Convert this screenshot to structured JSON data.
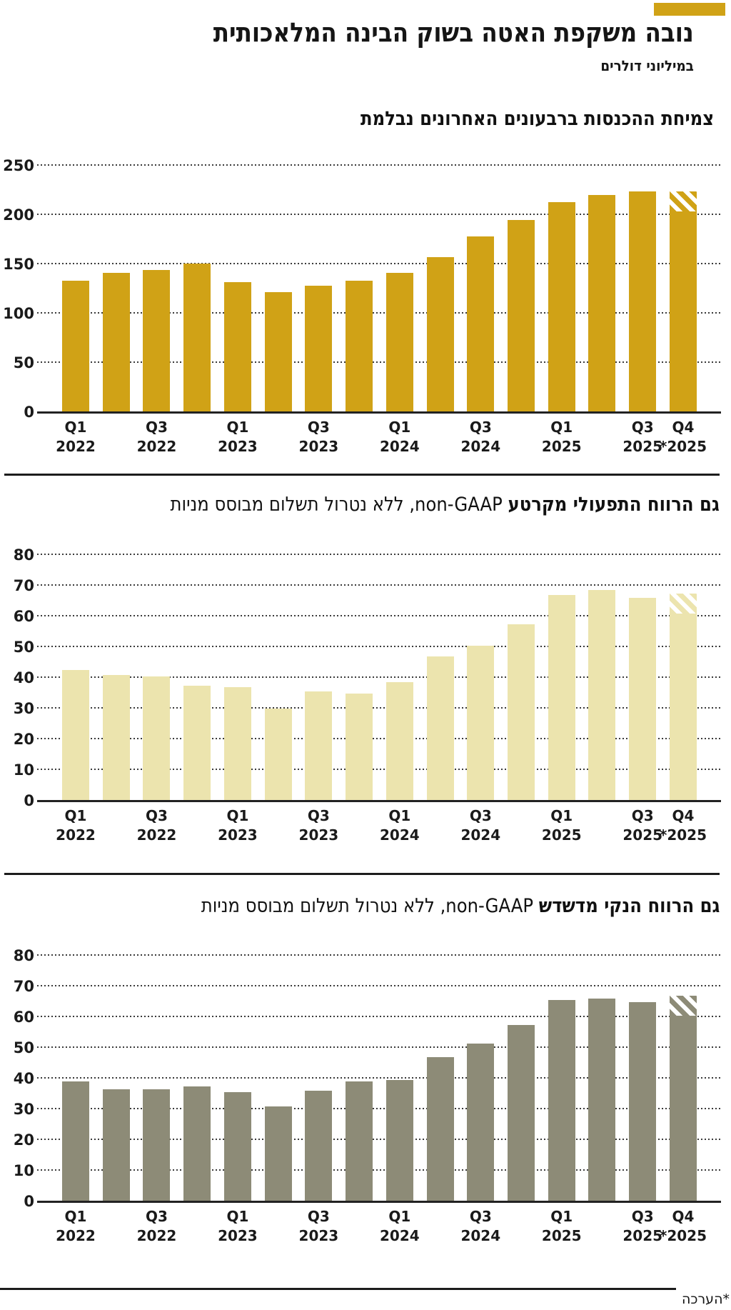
{
  "header": {
    "title": "נובה משקפת האטה בשוק הבינה המלאכותית",
    "subtitle": "במיליוני דולרים"
  },
  "footnote": "*הערכה",
  "brand_color": "#d0a216",
  "xticks": [
    {
      "i": 0,
      "q": "Q1",
      "y": "2022"
    },
    {
      "i": 2,
      "q": "Q3",
      "y": "2022"
    },
    {
      "i": 4,
      "q": "Q1",
      "y": "2023"
    },
    {
      "i": 6,
      "q": "Q3",
      "y": "2023"
    },
    {
      "i": 8,
      "q": "Q1",
      "y": "2024"
    },
    {
      "i": 10,
      "q": "Q3",
      "y": "2024"
    },
    {
      "i": 12,
      "q": "Q1",
      "y": "2025"
    },
    {
      "i": 14,
      "q": "Q3",
      "y": "2025"
    },
    {
      "i": 15,
      "q": "Q4",
      "y": "*2025"
    }
  ],
  "chart_data": [
    {
      "type": "bar",
      "title_bold": "צמיחת ההכנסות ברבעונים האחרונים נבלמת",
      "title_rest": "",
      "categories": [
        "Q1 2022",
        "Q2 2022",
        "Q3 2022",
        "Q4 2022",
        "Q1 2023",
        "Q2 2023",
        "Q3 2023",
        "Q4 2023",
        "Q1 2024",
        "Q2 2024",
        "Q3 2024",
        "Q4 2024",
        "Q1 2025",
        "Q2 2025",
        "Q3 2025",
        "Q4 2025 *estimate"
      ],
      "values": [
        133,
        141,
        144,
        151,
        132,
        122,
        128,
        133,
        141,
        157,
        178,
        195,
        213,
        220,
        224,
        224
      ],
      "ylim": [
        0,
        250
      ],
      "ytick_step": 50,
      "bar_color": "#d0a216",
      "grid": "dotted-horizontal",
      "last_bar_estimate": true
    },
    {
      "type": "bar",
      "title_bold": "גם הרווח התפעולי מקרטע",
      "title_rest": "non-GAAP, ללא נטרול תשלום מבוסס מניות",
      "categories": [
        "Q1 2022",
        "Q2 2022",
        "Q3 2022",
        "Q4 2022",
        "Q1 2023",
        "Q2 2023",
        "Q3 2023",
        "Q4 2023",
        "Q1 2024",
        "Q2 2024",
        "Q3 2024",
        "Q4 2024",
        "Q1 2025",
        "Q2 2025",
        "Q3 2025",
        "Q4 2025 *estimate"
      ],
      "values": [
        42.5,
        41,
        40.5,
        37.5,
        37,
        30,
        35.5,
        35,
        38.5,
        47,
        50.5,
        57.5,
        67,
        68.5,
        66,
        67.5
      ],
      "ylim": [
        0,
        80
      ],
      "ytick_step": 10,
      "bar_color": "#ece4ae",
      "grid": "dotted-horizontal",
      "last_bar_estimate": true
    },
    {
      "type": "bar",
      "title_bold": "גם הרווח הנקי מדשדש",
      "title_rest": "non-GAAP, ללא נטרול תשלום מבוסס מניות",
      "categories": [
        "Q1 2022",
        "Q2 2022",
        "Q3 2022",
        "Q4 2022",
        "Q1 2023",
        "Q2 2023",
        "Q3 2023",
        "Q4 2023",
        "Q1 2024",
        "Q2 2024",
        "Q3 2024",
        "Q4 2024",
        "Q1 2025",
        "Q2 2025",
        "Q3 2025",
        "Q4 2025 *estimate"
      ],
      "values": [
        39,
        36.5,
        36.5,
        37.5,
        35.5,
        31,
        36,
        39,
        39.5,
        47,
        51.5,
        57.5,
        65.5,
        66,
        65,
        67
      ],
      "ylim": [
        0,
        80
      ],
      "ytick_step": 10,
      "bar_color": "#8d8b77",
      "grid": "dotted-horizontal",
      "last_bar_estimate": true
    }
  ]
}
